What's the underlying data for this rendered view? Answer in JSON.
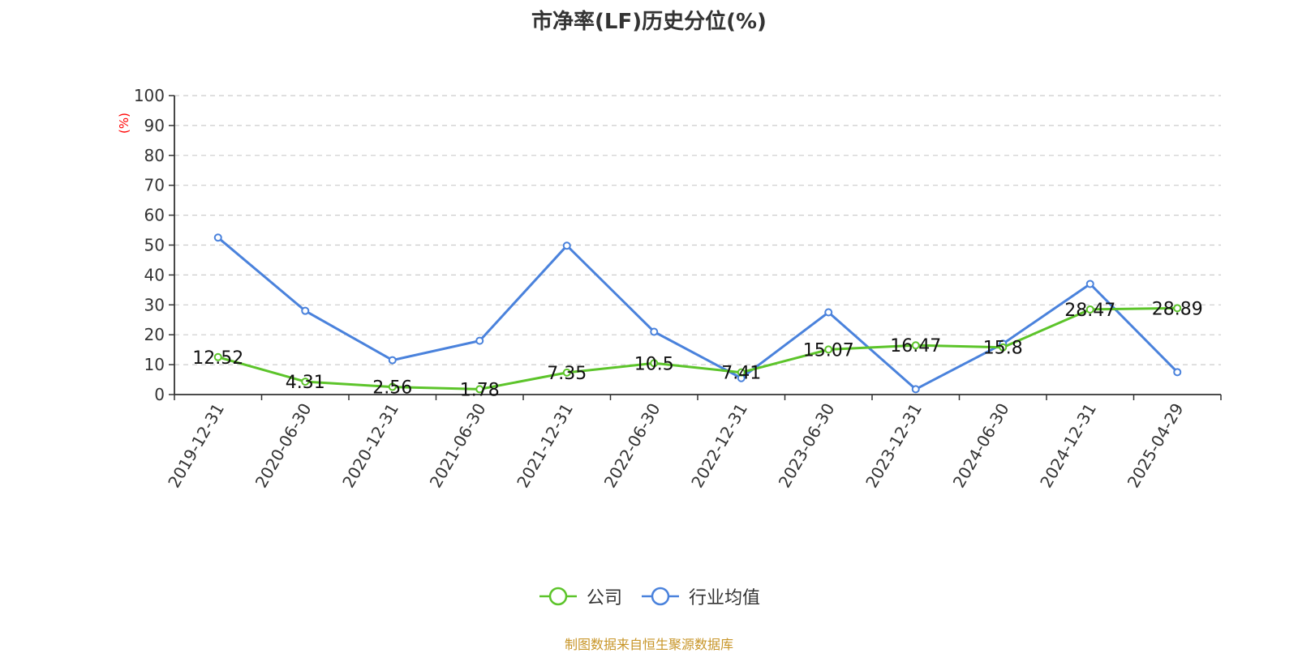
{
  "title": "市净率(LF)历史分位(%)",
  "source_note": "制图数据来自恒生聚源数据库",
  "colors": {
    "company": "#5cc42a",
    "industry": "#4a82dc",
    "ylabel": "#ff0000",
    "axis": "#333333",
    "grid": "#cccccc"
  },
  "chart_data": {
    "type": "line",
    "title": "市净率(LF)历史分位(%)",
    "xlabel": "",
    "ylabel": "(%)",
    "ylim": [
      0,
      100
    ],
    "yticks": [
      0,
      10,
      20,
      30,
      40,
      50,
      60,
      70,
      80,
      90,
      100
    ],
    "grid": true,
    "legend_position": "bottom",
    "categories": [
      "2019-12-31",
      "2020-06-30",
      "2020-12-31",
      "2021-06-30",
      "2021-12-31",
      "2022-06-30",
      "2022-12-31",
      "2023-06-30",
      "2023-12-31",
      "2024-06-30",
      "2024-12-31",
      "2025-04-29"
    ],
    "series": [
      {
        "name": "公司",
        "color": "#5cc42a",
        "values": [
          12.52,
          4.31,
          2.56,
          1.78,
          7.35,
          10.5,
          7.41,
          15.07,
          16.47,
          15.8,
          28.47,
          28.89
        ],
        "labels": [
          "12.52",
          "4.31",
          "2.56",
          "1.78",
          "7.35",
          "10.5",
          "7.41",
          "15.07",
          "16.47",
          "15.8",
          "28.47",
          "28.89"
        ]
      },
      {
        "name": "行业均值",
        "color": "#4a82dc",
        "values": [
          52.5,
          28,
          11.5,
          18,
          49.8,
          21,
          5.5,
          27.5,
          1.8,
          17,
          37,
          7.5
        ]
      }
    ]
  }
}
